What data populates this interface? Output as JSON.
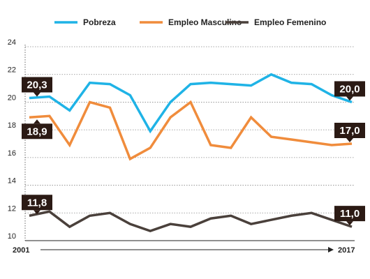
{
  "chart_data": {
    "type": "line",
    "title": "",
    "xlabel": "",
    "ylabel": "",
    "ylim": [
      10,
      24
    ],
    "yticks": [
      10,
      12,
      14,
      16,
      18,
      20,
      22,
      24
    ],
    "x": [
      2001,
      2002,
      2003,
      2004,
      2005,
      2006,
      2007,
      2008,
      2009,
      2010,
      2011,
      2012,
      2013,
      2014,
      2015,
      2016,
      2017
    ],
    "x_start_label": "2001",
    "x_end_label": "2017",
    "grid": true,
    "legend_placement": "top",
    "series": [
      {
        "name": "Pobreza",
        "color": "#1fb3e6",
        "values": [
          20.3,
          20.4,
          19.4,
          21.4,
          21.3,
          20.5,
          17.9,
          20.0,
          21.3,
          21.4,
          21.3,
          21.2,
          22.0,
          21.4,
          21.3,
          20.5,
          20.0
        ],
        "start_label": "20,3",
        "end_label": "20,0"
      },
      {
        "name": "Empleo Masculino",
        "color": "#f08c3c",
        "values": [
          18.9,
          19.0,
          16.9,
          20.0,
          19.6,
          15.9,
          16.7,
          18.9,
          20.0,
          16.9,
          16.7,
          18.9,
          17.5,
          17.3,
          17.1,
          16.9,
          17.0
        ],
        "start_label": "18,9",
        "end_label": "17,0"
      },
      {
        "name": "Empleo Femenino",
        "color": "#4a403b",
        "values": [
          11.8,
          12.1,
          11.0,
          11.8,
          12.0,
          11.2,
          10.7,
          11.2,
          11.0,
          11.6,
          11.8,
          11.2,
          11.5,
          11.8,
          12.0,
          11.5,
          11.0
        ],
        "start_label": "11,8",
        "end_label": "11,0"
      }
    ]
  }
}
